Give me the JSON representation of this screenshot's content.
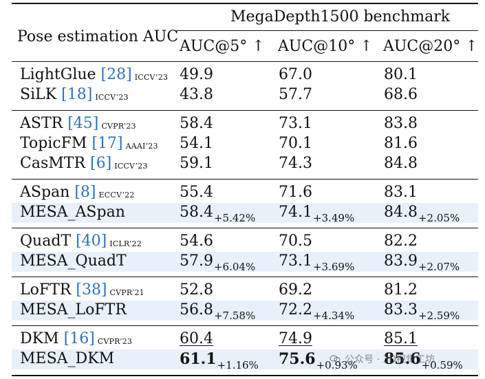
{
  "table": {
    "header_left": "Pose estimation AUC",
    "super_header": "MegaDepth1500 benchmark",
    "columns": [
      "AUC@5° ↑",
      "AUC@10° ↑",
      "AUC@20° ↑"
    ],
    "rows": [
      {
        "method": "LightGlue",
        "cite": "[28]",
        "venue": "ICCV’23",
        "values": [
          "49.9",
          "67.0",
          "80.1"
        ]
      },
      {
        "method": "SiLK",
        "cite": "[18]",
        "venue": "ICCV’23",
        "values": [
          "43.8",
          "57.7",
          "68.6"
        ]
      },
      {
        "method": "ASTR",
        "cite": "[45]",
        "venue": "CVPR’23",
        "values": [
          "58.4",
          "73.1",
          "83.8"
        ]
      },
      {
        "method": "TopicFM",
        "cite": "[17]",
        "venue": "AAAI’23",
        "values": [
          "54.1",
          "70.1",
          "81.6"
        ]
      },
      {
        "method": "CasMTR",
        "cite": "[6]",
        "venue": "ICCV’23",
        "values": [
          "59.1",
          "74.3",
          "84.8"
        ]
      },
      {
        "method": "ASpan",
        "cite": "[8]",
        "venue": "ECCV’22",
        "values": [
          "55.4",
          "71.6",
          "83.1"
        ]
      },
      {
        "method": "MESA_ASpan",
        "values": [
          "58.4",
          "74.1",
          "84.8"
        ],
        "deltas": [
          "+5.42%",
          "+3.49%",
          "+2.05%"
        ]
      },
      {
        "method": "QuadT",
        "cite": "[40]",
        "venue": "ICLR’22",
        "values": [
          "54.6",
          "70.5",
          "82.2"
        ]
      },
      {
        "method": "MESA_QuadT",
        "values": [
          "57.9",
          "73.1",
          "83.9"
        ],
        "deltas": [
          "+6.04%",
          "+3.69%",
          "+2.07%"
        ]
      },
      {
        "method": "LoFTR",
        "cite": "[38]",
        "venue": "CVPR’21",
        "values": [
          "52.8",
          "69.2",
          "81.2"
        ]
      },
      {
        "method": "MESA_LoFTR",
        "values": [
          "56.8",
          "72.2",
          "83.3"
        ],
        "deltas": [
          "+7.58%",
          "+4.34%",
          "+2.59%"
        ]
      },
      {
        "method": "DKM",
        "cite": "[16]",
        "venue": "CVPR’23",
        "values": [
          "60.4",
          "74.9",
          "85.1"
        ]
      },
      {
        "method": "MESA_DKM",
        "values": [
          "61.1",
          "75.6",
          "85.6"
        ],
        "deltas": [
          "+1.16%",
          "+0.93%",
          "+0.59%"
        ]
      }
    ]
  },
  "watermark": "公众号 · 3D视觉工坊",
  "colors": {
    "citation": "#2e72b8",
    "highlight_row": "#e8f1fa",
    "rule": "#111111"
  }
}
